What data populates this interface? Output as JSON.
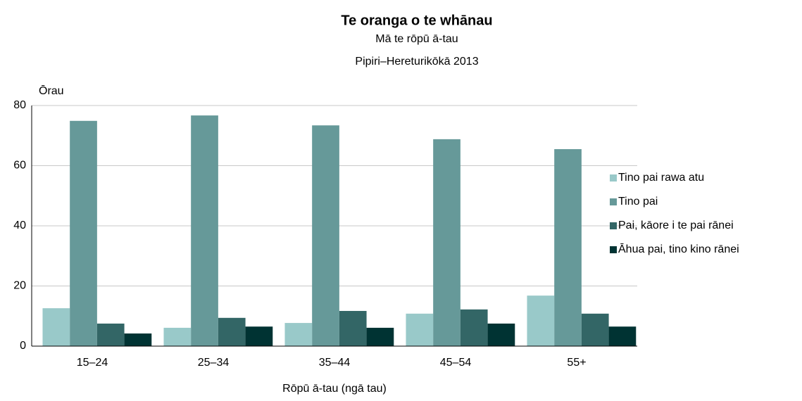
{
  "chart_data": {
    "type": "bar",
    "title": "Te oranga o te whānau",
    "subtitle": [
      "Mā te rōpū ā-tau",
      "Pipiri–Hereturikōkā 2013"
    ],
    "y_label": "Ōrau",
    "x_label": "Rōpū ā-tau (ngā tau)",
    "categories": [
      "15–24",
      "25–34",
      "35–44",
      "45–54",
      "55+"
    ],
    "series": [
      {
        "name": "Tino pai rawa atu",
        "color": "#99c9c9",
        "values": [
          12.6,
          6.1,
          7.7,
          10.8,
          16.8
        ]
      },
      {
        "name": "Tino pai",
        "color": "#669999",
        "values": [
          74.9,
          76.7,
          73.4,
          68.8,
          65.5
        ]
      },
      {
        "name": "Pai, kāore i te pai rānei",
        "color": "#336666",
        "values": [
          7.5,
          9.4,
          11.7,
          12.2,
          10.8
        ]
      },
      {
        "name": "Āhua pai, tino kino rānei",
        "color": "#003333",
        "values": [
          4.2,
          6.5,
          6.1,
          7.5,
          6.5
        ]
      }
    ],
    "ylim": [
      0,
      80
    ],
    "yticks": [
      0,
      20,
      40,
      60,
      80
    ],
    "grid": true,
    "legend": "right"
  }
}
